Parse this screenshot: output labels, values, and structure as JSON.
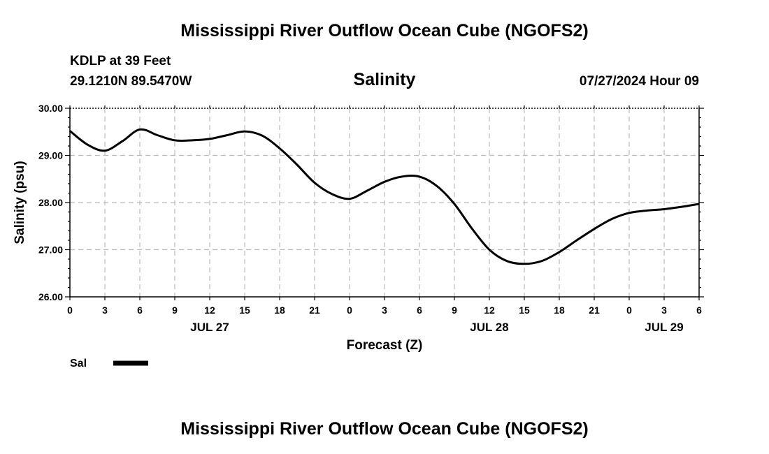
{
  "header": {
    "title": "Mississippi River Outflow Ocean Cube (NGOFS2)",
    "station": "KDLP at 39 Feet",
    "coords": "29.1210N  89.5470W",
    "variable": "Salinity",
    "timestamp": "07/27/2024 Hour 09"
  },
  "footer": {
    "title": "Mississippi River Outflow Ocean Cube (NGOFS2)"
  },
  "chart_data": {
    "type": "line",
    "title": "Salinity",
    "xlabel": "Forecast (Z)",
    "ylabel": "Salinity (psu)",
    "xlim": [
      0,
      54
    ],
    "ylim": [
      26.0,
      30.0
    ],
    "yticks": [
      "26.00",
      "27.00",
      "28.00",
      "29.00",
      "30.00"
    ],
    "xtick_labels": [
      "0",
      "3",
      "6",
      "9",
      "12",
      "15",
      "18",
      "21",
      "0",
      "3",
      "6",
      "9",
      "12",
      "15",
      "18",
      "21",
      "0",
      "3",
      "6"
    ],
    "date_labels": [
      {
        "label": "JUL 27",
        "x": 12
      },
      {
        "label": "JUL 28",
        "x": 36
      },
      {
        "label": "JUL 29",
        "x": 51
      }
    ],
    "grid": true,
    "legend": {
      "label": "Sal",
      "position": "bottom-left"
    },
    "series": [
      {
        "name": "Sal",
        "color": "#000000",
        "x": [
          0,
          1.5,
          3,
          4.5,
          6,
          7.5,
          9,
          10.5,
          12,
          13.5,
          15,
          16.5,
          18,
          19.5,
          21,
          22.5,
          24,
          25.5,
          27,
          28.5,
          30,
          31.5,
          33,
          34.5,
          36,
          37.5,
          39,
          40.5,
          42,
          43.5,
          45,
          46.5,
          48,
          49.5,
          51,
          52.5,
          54
        ],
        "values": [
          29.52,
          29.23,
          29.1,
          29.3,
          29.55,
          29.43,
          29.32,
          29.32,
          29.35,
          29.43,
          29.51,
          29.42,
          29.15,
          28.8,
          28.42,
          28.18,
          28.08,
          28.25,
          28.44,
          28.55,
          28.55,
          28.35,
          27.97,
          27.45,
          27.0,
          26.76,
          26.7,
          26.76,
          26.95,
          27.2,
          27.44,
          27.65,
          27.78,
          27.83,
          27.86,
          27.91,
          27.97
        ]
      }
    ]
  }
}
